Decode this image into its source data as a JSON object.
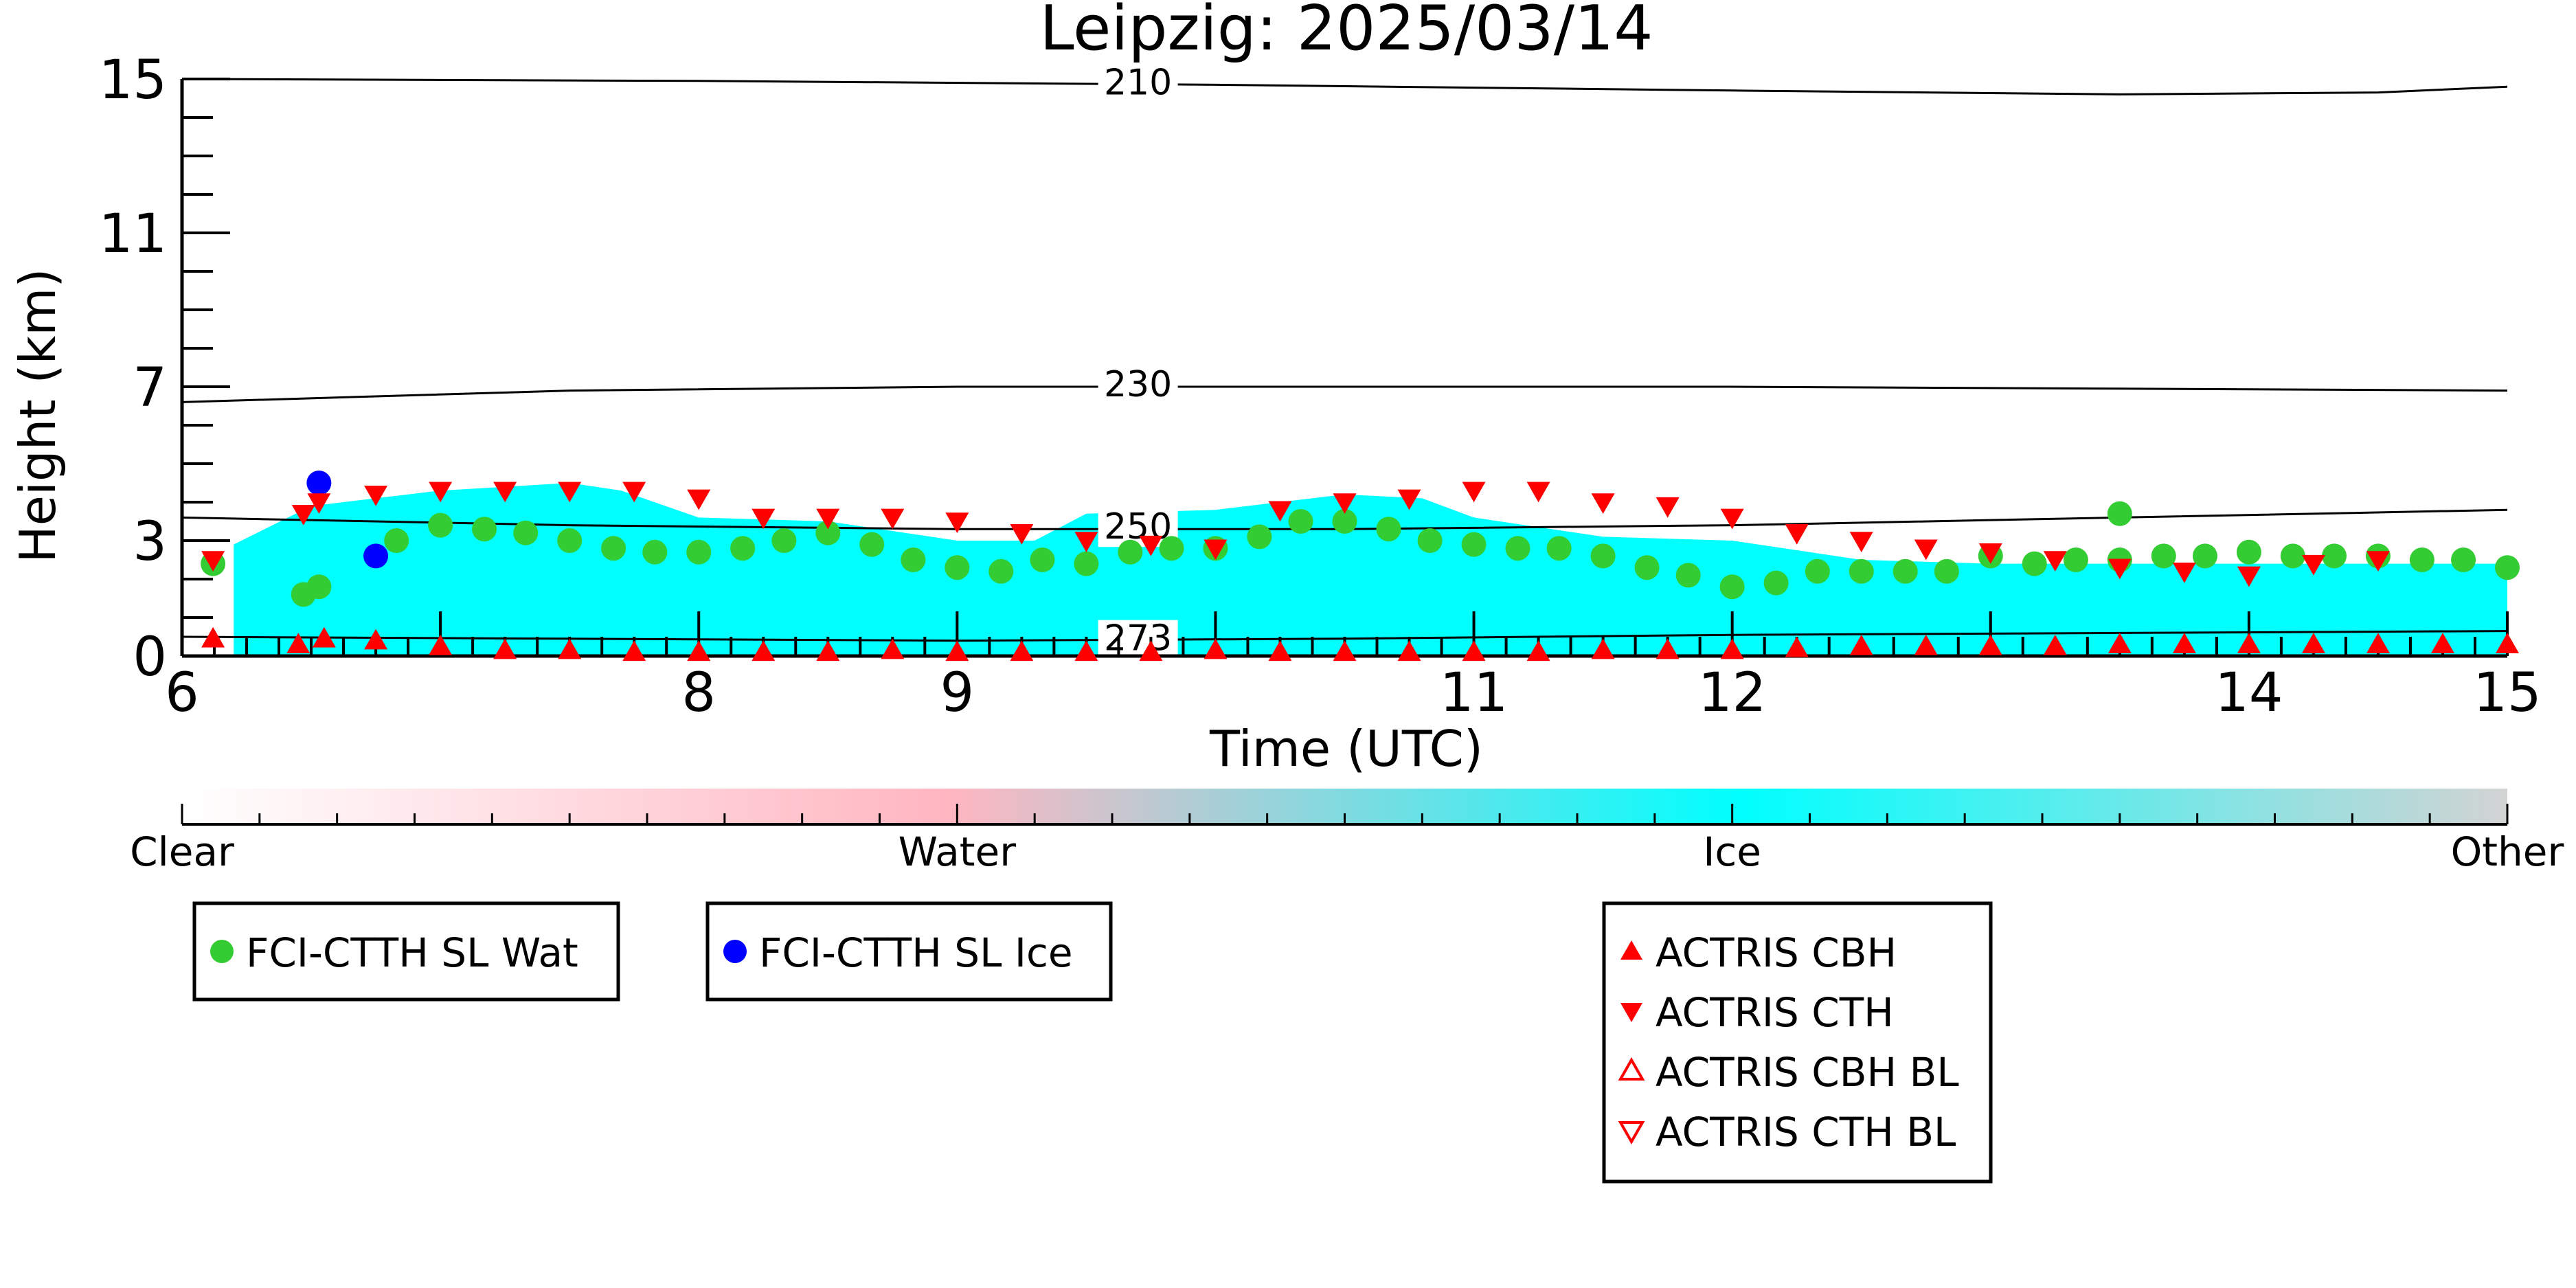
{
  "chart_data": {
    "type": "scatter",
    "title": "Leipzig: 2025/03/14",
    "xlabel": "Time (UTC)",
    "ylabel": "Height (km)",
    "xlim": [
      6,
      15
    ],
    "ylim": [
      0,
      15
    ],
    "x_ticks": [
      "6",
      "8",
      "9",
      "11",
      "12",
      "14",
      "15"
    ],
    "y_ticks": [
      "0",
      "3",
      "7",
      "11",
      "15"
    ],
    "colorbar": {
      "labels": [
        "Clear",
        "Water",
        "Ice",
        "Other"
      ],
      "colors": [
        "#ffffff",
        "#ffb6c1",
        "#00ffff",
        "#d3d3d3"
      ]
    },
    "isotherms": [
      {
        "label": "210",
        "x": [
          6.0,
          8.0,
          10.0,
          12.0,
          13.5,
          14.5,
          15.0
        ],
        "y": [
          15.0,
          14.95,
          14.85,
          14.7,
          14.6,
          14.65,
          14.8
        ]
      },
      {
        "label": "230",
        "x": [
          6.0,
          7.5,
          9.0,
          10.5,
          12.0,
          13.5,
          15.0
        ],
        "y": [
          6.6,
          6.9,
          7.0,
          7.0,
          7.0,
          6.95,
          6.9
        ]
      },
      {
        "label": "250",
        "x": [
          6.0,
          7.5,
          9.0,
          10.5,
          12.0,
          13.5,
          15.0
        ],
        "y": [
          3.6,
          3.4,
          3.3,
          3.3,
          3.4,
          3.6,
          3.8
        ]
      },
      {
        "label": "273",
        "x": [
          6.0,
          7.5,
          9.0,
          10.5,
          12.0,
          13.5,
          15.0
        ],
        "y": [
          0.5,
          0.45,
          0.4,
          0.45,
          0.55,
          0.6,
          0.65
        ]
      }
    ],
    "cloud_mask": {
      "x": [
        6.2,
        6.5,
        7.0,
        7.5,
        7.7,
        8.0,
        8.5,
        9.0,
        9.3,
        9.5,
        10.0,
        10.5,
        10.8,
        11.0,
        11.5,
        12.0,
        12.5,
        13.0,
        13.5,
        14.0,
        14.5,
        15.0
      ],
      "top": [
        2.9,
        3.9,
        4.3,
        4.5,
        4.3,
        3.6,
        3.5,
        3.0,
        3.0,
        3.7,
        3.8,
        4.2,
        4.1,
        3.6,
        3.1,
        3.0,
        2.5,
        2.4,
        2.4,
        2.4,
        2.4,
        2.4
      ],
      "base": [
        0.0,
        0.0,
        0.0,
        0.0,
        0.0,
        0.0,
        0.0,
        0.0,
        0.0,
        0.0,
        0.0,
        0.0,
        0.0,
        0.0,
        0.0,
        0.0,
        0.0,
        0.0,
        0.0,
        0.0,
        0.0,
        0.0
      ]
    },
    "series": [
      {
        "name": "FCI-CTTH SL Wat",
        "color": "#33cc33",
        "marker": "circle",
        "x": [
          6.12,
          6.47,
          6.53,
          6.83,
          7.0,
          7.17,
          7.33,
          7.5,
          7.67,
          7.83,
          8.0,
          8.17,
          8.33,
          8.5,
          8.67,
          8.83,
          9.0,
          9.17,
          9.33,
          9.5,
          9.67,
          9.83,
          10.0,
          10.17,
          10.33,
          10.5,
          10.67,
          10.83,
          11.0,
          11.17,
          11.33,
          11.5,
          11.67,
          11.83,
          12.0,
          12.17,
          12.33,
          12.5,
          12.67,
          12.83,
          13.0,
          13.17,
          13.33,
          13.5,
          13.67,
          13.83,
          14.0,
          14.17,
          14.33,
          14.5,
          14.67,
          14.83,
          15.0
        ],
        "y": [
          2.4,
          1.6,
          1.8,
          3.0,
          3.4,
          3.3,
          3.2,
          3.0,
          2.8,
          2.7,
          2.7,
          2.8,
          3.0,
          3.2,
          2.9,
          2.5,
          2.3,
          2.2,
          2.5,
          2.4,
          2.7,
          2.8,
          2.8,
          3.1,
          3.5,
          3.5,
          3.3,
          3.0,
          2.9,
          2.8,
          2.8,
          2.6,
          2.3,
          2.1,
          1.8,
          1.9,
          2.2,
          2.2,
          2.2,
          2.2,
          2.6,
          2.4,
          2.5,
          2.5,
          2.6,
          2.6,
          2.7,
          2.6,
          2.6,
          2.6,
          2.5,
          2.5,
          2.3
        ],
        "extra": {
          "x": 13.5,
          "y": 3.7
        }
      },
      {
        "name": "FCI-CTTH SL Ice",
        "color": "#0000ff",
        "marker": "circle",
        "x": [
          6.53,
          6.75
        ],
        "y": [
          4.5,
          2.6
        ]
      },
      {
        "name": "ACTRIS CBH",
        "color": "#ff0000",
        "marker": "triangle-up",
        "x": [
          6.12,
          6.45,
          6.55,
          6.75,
          7.0,
          7.25,
          7.5,
          7.75,
          8.0,
          8.25,
          8.5,
          8.75,
          9.0,
          9.25,
          9.5,
          9.75,
          10.0,
          10.25,
          10.5,
          10.75,
          11.0,
          11.25,
          11.5,
          11.75,
          12.0,
          12.25,
          12.5,
          12.75,
          13.0,
          13.25,
          13.5,
          13.75,
          14.0,
          14.25,
          14.5,
          14.75,
          15.0
        ],
        "y": [
          0.45,
          0.3,
          0.45,
          0.4,
          0.25,
          0.15,
          0.15,
          0.1,
          0.1,
          0.1,
          0.1,
          0.15,
          0.1,
          0.1,
          0.1,
          0.1,
          0.15,
          0.1,
          0.1,
          0.1,
          0.1,
          0.1,
          0.15,
          0.15,
          0.15,
          0.2,
          0.25,
          0.25,
          0.25,
          0.25,
          0.3,
          0.3,
          0.3,
          0.3,
          0.3,
          0.3,
          0.3
        ]
      },
      {
        "name": "ACTRIS CTH",
        "color": "#ff0000",
        "marker": "triangle-down",
        "x": [
          6.12,
          6.47,
          6.53,
          6.75,
          7.0,
          7.25,
          7.5,
          7.75,
          8.0,
          8.25,
          8.5,
          8.75,
          9.0,
          9.25,
          9.5,
          9.75,
          10.0,
          10.25,
          10.5,
          10.75,
          11.0,
          11.25,
          11.5,
          11.75,
          12.0,
          12.25,
          12.5,
          12.75,
          13.0,
          13.25,
          13.5,
          13.75,
          14.0,
          14.25,
          14.5
        ],
        "y": [
          2.5,
          3.7,
          4.0,
          4.2,
          4.3,
          4.3,
          4.3,
          4.3,
          4.1,
          3.6,
          3.6,
          3.6,
          3.5,
          3.2,
          3.0,
          2.9,
          2.8,
          3.8,
          4.0,
          4.1,
          4.3,
          4.3,
          4.0,
          3.9,
          3.6,
          3.2,
          3.0,
          2.8,
          2.7,
          2.5,
          2.3,
          2.2,
          2.1,
          2.4,
          2.5
        ]
      },
      {
        "name": "ACTRIS CBH BL",
        "color": "#ff0000",
        "marker": "triangle-up-open",
        "x": [],
        "y": []
      },
      {
        "name": "ACTRIS CTH BL",
        "color": "#ff0000",
        "marker": "triangle-down-open",
        "x": [],
        "y": []
      }
    ]
  }
}
